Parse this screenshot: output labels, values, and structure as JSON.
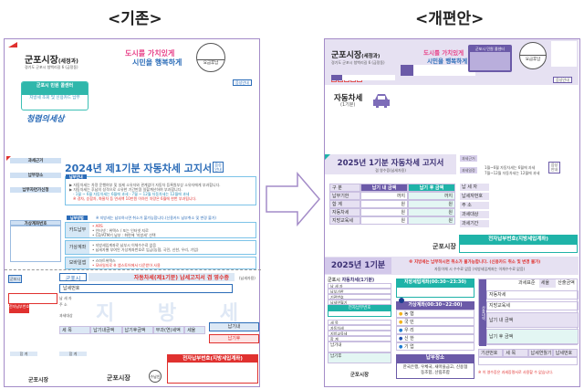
{
  "labels": {
    "before": "<기존>",
    "after": "<개편안>"
  },
  "colors": {
    "purple": "#6b5aa8",
    "lavender": "#e6e1f2",
    "teal": "#1fb3a8",
    "blue": "#2b6cb8",
    "red": "#e0312f",
    "pink": "#e8438a"
  },
  "old": {
    "sender": "군포시장",
    "sender_dept": "(세정과)",
    "address": "경기도 군포시 청백리길 6 (금정동)",
    "postal": [
      "1",
      "5",
      "8",
      "2",
      "9"
    ],
    "slogan1": "도시를 가치있게",
    "slogan2": "시민을 행복하게",
    "stamp": "요금후납",
    "voice": "음성안내",
    "callcenter": "군포시 민원 콜센터",
    "card_pay": "지방세 조회 및 신용카드 납부",
    "logo": "청렴의세상",
    "sidebar": [
      "과세근거",
      "납부장소",
      "납부자연가신청",
      "가상계좌번호"
    ],
    "title": "2024년 제1기분 자동차세 고지서",
    "voice2": "음성안내",
    "guide_tab": "납부안내",
    "guide": [
      "▶ 자동차세는 차량 운행여부 및 실제 소유자와 관계없이 자동차 등록원부상 소유자에게 부과합니다.",
      "▶ 자동차세는 후납의 성격으로 소유한 기간만큼 일할계산하여 부과합니다.",
      "- 1월 ~ 6월 자동차세는 6월에 과세    - 7월 ~ 12월 자동차세는 12월에 과세",
      "※ 경차, 승합차, 화물차 등 연세액 10만원 이하인 차량은 6월에 한번 부과됩니다."
    ],
    "method_tab": "납부방법",
    "method_note": "※ 지방세는 납부하시면 취소가 불가능합니다.(신용카드 납부취소 및 변경 불가)",
    "methods": [
      {
        "name": "카드납부",
        "lines": [
          "• ARS",
          "• 인터넷 : 위택스 / 또는 인터넷 지로",
          "• CD/ATM기 납부 : 화면에 '지방세' 선택"
        ]
      },
      {
        "name": "가상계좌",
        "lines": [
          "• 지방세입계좌로 납부시 이체수수료 없음",
          "• 납세자별 부여된 가상계좌번호로 입금(농협, 국민, 신한, 우리, 기업)"
        ]
      },
      {
        "name": "모바일앱",
        "lines": [
          "• 스마트위택스",
          "• 모바일지로   ※ 앱스토어에서 다운받아 사용"
        ]
      }
    ],
    "receipt_city": "군포시",
    "receipt_title": "자동차세(제1기분) 납세고지서 겸 영수증",
    "receipt_sub": "(납세자용)",
    "taxno": "납세번호",
    "payer": "납 세 자",
    "addr": "주 소",
    "object": "과세대상",
    "watermark": "지 방 세",
    "cols": [
      "세 목",
      "납기내금액",
      "납기후금액",
      "부과(연)세액",
      "세율"
    ],
    "total": "합 계",
    "due_in": "납기내",
    "due_after": "납기후",
    "epay": "전자납부번호(지방세입계좌)",
    "epay_small": "전자납부번호",
    "mayor": "군포시장",
    "mayor2": "군포시장",
    "receiver": "수납인"
  },
  "new": {
    "sender": "군포시장",
    "sender_dept": "(세정과)",
    "address": "경기도 군포시 청백리길 6 (금정동)",
    "postal": [
      "1",
      "5",
      "8",
      "2",
      "9"
    ],
    "slogan1": "도시를 가치있게",
    "slogan2": "시민을 행복하게",
    "callcenter": "군포시 민원 콜센터",
    "stamp": "요금후납",
    "voice": "음성안내",
    "tax_name": "자동차세",
    "tax_period": "(1기분)",
    "title": "2025년 1기분 자동차세 고지서",
    "subtitle": "겸 영수증(납세자용)",
    "basis_label": "과세근거",
    "schedule_label": "과세일정",
    "voice2": "음성안내",
    "schedule": [
      "1월~6월 자동차세는 6월에 과세",
      "7월~12월 자동차세는 12월에 과세"
    ],
    "table": {
      "headers": [
        "구 분",
        "납기 내 금액",
        "납기 후 금액"
      ],
      "rows": [
        [
          "납부기한",
          "까지",
          "까지"
        ],
        [
          "합 계",
          "원",
          "원"
        ],
        [
          "자동차세",
          "원",
          "원"
        ],
        [
          "지방교육세",
          "원",
          "원"
        ]
      ]
    },
    "info": [
      "납 세 자",
      "납세자번호",
      "주 소",
      "과세대상",
      "과세기간"
    ],
    "mayor": "군포시장",
    "epay": "전자납부번호(지방세입계좌)",
    "period_band": "2025년 1기분",
    "warning": "※ 지방세는 납부하시면 취소가 불가능합니다. (신용카드 취소 및 변경 불가)",
    "warning_sub": "자동이체 시 수수료 없음 (지방세입계좌는 이체수수료 없음)",
    "stub_city": "군포시",
    "stub_title": "자동차세(1기분)",
    "stub_rows": [
      "납 세 자",
      "납부기한",
      "기관번호",
      "납세연월기"
    ],
    "stub_epay": "전자납부번호",
    "stub_items": [
      "세 목",
      "자동차세",
      "지방교육세",
      "합 계"
    ],
    "stub_due_in": "납기내",
    "stub_due_after": "납기후",
    "stub_mayor": "군포시장",
    "local_account": "지방세입계좌(00:30~23:30)",
    "virtual_account": "가상계좌(00:30~22:00)",
    "banks": [
      "농 협",
      "국 민",
      "우 리",
      "신 한",
      "기 업"
    ],
    "place_title": "납부장소",
    "place_text": "한국은행, 우체국, 새마을금고, 신용협동조합, 산림조합",
    "calc_label": "산출내역",
    "calc_headers": [
      "과세표준",
      "세율",
      "산출금액"
    ],
    "calc_rows": [
      "자동차세",
      "지방교육세"
    ],
    "calc_due_in": "납기 내 금액",
    "calc_due_after": "납기 후 금액",
    "code_headers": [
      "기관번호",
      "세 목",
      "납세연월기",
      "납세번호"
    ],
    "footnote": "※ 이 영수증은 과세증명서로 사용할 수 없습니다."
  }
}
